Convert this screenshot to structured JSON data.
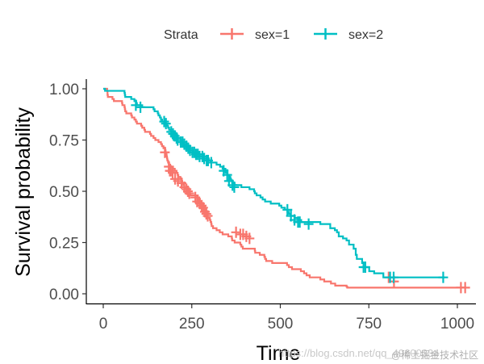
{
  "chart_data": {
    "type": "line",
    "subtype": "kaplan-meier step",
    "title": "",
    "xlabel": "Time",
    "ylabel": "Survival probability",
    "xlim": [
      0,
      1022
    ],
    "ylim": [
      0,
      1
    ],
    "x_ticks": [
      0,
      250,
      500,
      750,
      1000
    ],
    "x_tick_labels": [
      "0",
      "250",
      "500",
      "750",
      "1000"
    ],
    "y_ticks": [
      0,
      0.25,
      0.5,
      0.75,
      1.0
    ],
    "y_tick_labels": [
      "0.00",
      "0.25",
      "0.50",
      "0.75",
      "1.00"
    ],
    "grid": false,
    "legend": {
      "position": "top",
      "title": "Strata",
      "entries": [
        "sex=1",
        "sex=2"
      ]
    },
    "series": [
      {
        "name": "sex=1",
        "color": "#F8766D",
        "steps": [
          [
            0,
            1.0
          ],
          [
            11,
            0.99
          ],
          [
            12,
            0.97
          ],
          [
            13,
            0.96
          ],
          [
            26,
            0.95
          ],
          [
            30,
            0.94
          ],
          [
            53,
            0.93
          ],
          [
            54,
            0.92
          ],
          [
            60,
            0.91
          ],
          [
            61,
            0.9
          ],
          [
            62,
            0.89
          ],
          [
            65,
            0.88
          ],
          [
            79,
            0.87
          ],
          [
            81,
            0.86
          ],
          [
            88,
            0.85
          ],
          [
            92,
            0.84
          ],
          [
            95,
            0.83
          ],
          [
            107,
            0.82
          ],
          [
            110,
            0.81
          ],
          [
            116,
            0.8
          ],
          [
            118,
            0.79
          ],
          [
            132,
            0.78
          ],
          [
            135,
            0.77
          ],
          [
            142,
            0.76
          ],
          [
            147,
            0.75
          ],
          [
            156,
            0.74
          ],
          [
            163,
            0.73
          ],
          [
            166,
            0.72
          ],
          [
            170,
            0.71
          ],
          [
            175,
            0.7
          ],
          [
            176,
            0.69
          ],
          [
            177,
            0.68
          ],
          [
            179,
            0.67
          ],
          [
            180,
            0.66
          ],
          [
            181,
            0.65
          ],
          [
            183,
            0.64
          ],
          [
            186,
            0.63
          ],
          [
            189,
            0.62
          ],
          [
            197,
            0.61
          ],
          [
            202,
            0.6
          ],
          [
            207,
            0.59
          ],
          [
            210,
            0.58
          ],
          [
            212,
            0.57
          ],
          [
            218,
            0.56
          ],
          [
            222,
            0.55
          ],
          [
            223,
            0.54
          ],
          [
            226,
            0.53
          ],
          [
            229,
            0.52
          ],
          [
            230,
            0.51
          ],
          [
            239,
            0.5
          ],
          [
            245,
            0.49
          ],
          [
            246,
            0.48
          ],
          [
            267,
            0.47
          ],
          [
            268,
            0.46
          ],
          [
            269,
            0.45
          ],
          [
            270,
            0.44
          ],
          [
            283,
            0.43
          ],
          [
            284,
            0.42
          ],
          [
            285,
            0.41
          ],
          [
            286,
            0.4
          ],
          [
            288,
            0.39
          ],
          [
            291,
            0.38
          ],
          [
            293,
            0.37
          ],
          [
            301,
            0.36
          ],
          [
            303,
            0.35
          ],
          [
            305,
            0.34
          ],
          [
            306,
            0.33
          ],
          [
            310,
            0.32
          ],
          [
            320,
            0.31
          ],
          [
            329,
            0.3
          ],
          [
            337,
            0.29
          ],
          [
            353,
            0.28
          ],
          [
            363,
            0.27
          ],
          [
            364,
            0.26
          ],
          [
            371,
            0.25
          ],
          [
            387,
            0.24
          ],
          [
            390,
            0.23
          ],
          [
            394,
            0.22
          ],
          [
            428,
            0.21
          ],
          [
            429,
            0.2
          ],
          [
            442,
            0.19
          ],
          [
            455,
            0.18
          ],
          [
            457,
            0.17
          ],
          [
            460,
            0.16
          ],
          [
            477,
            0.15
          ],
          [
            519,
            0.14
          ],
          [
            524,
            0.13
          ],
          [
            533,
            0.12
          ],
          [
            558,
            0.11
          ],
          [
            567,
            0.1
          ],
          [
            574,
            0.09
          ],
          [
            583,
            0.08
          ],
          [
            613,
            0.07
          ],
          [
            624,
            0.06
          ],
          [
            643,
            0.05
          ],
          [
            655,
            0.04
          ],
          [
            687,
            0.035
          ],
          [
            689,
            0.03
          ],
          [
            705,
            0.03
          ],
          [
            707,
            0.03
          ],
          [
            731,
            0.03
          ],
          [
            735,
            0.03
          ],
          [
            765,
            0.03
          ],
          [
            791,
            0.03
          ],
          [
            806,
            0.03
          ],
          [
            814,
            0.03
          ],
          [
            840,
            0.03
          ],
          [
            883,
            0.03
          ],
          [
            1010,
            0.03
          ],
          [
            1022,
            0.03
          ]
        ],
        "censor": [
          [
            174,
            0.69
          ],
          [
            185,
            0.62
          ],
          [
            188,
            0.6
          ],
          [
            191,
            0.6
          ],
          [
            196,
            0.59
          ],
          [
            203,
            0.56
          ],
          [
            211,
            0.55
          ],
          [
            221,
            0.54
          ],
          [
            229,
            0.52
          ],
          [
            235,
            0.51
          ],
          [
            239,
            0.5
          ],
          [
            243,
            0.49
          ],
          [
            260,
            0.47
          ],
          [
            265,
            0.45
          ],
          [
            273,
            0.44
          ],
          [
            278,
            0.43
          ],
          [
            282,
            0.42
          ],
          [
            287,
            0.4
          ],
          [
            291,
            0.39
          ],
          [
            295,
            0.38
          ],
          [
            375,
            0.3
          ],
          [
            387,
            0.29
          ],
          [
            395,
            0.29
          ],
          [
            404,
            0.28
          ],
          [
            413,
            0.27
          ],
          [
            806,
            0.08
          ],
          [
            821,
            0.06
          ],
          [
            1010,
            0.03
          ],
          [
            1022,
            0.03
          ]
        ]
      },
      {
        "name": "sex=2",
        "color": "#00BFC4",
        "steps": [
          [
            0,
            1.0
          ],
          [
            5,
            0.99
          ],
          [
            60,
            0.98
          ],
          [
            61,
            0.97
          ],
          [
            62,
            0.96
          ],
          [
            79,
            0.95
          ],
          [
            88,
            0.94
          ],
          [
            93,
            0.93
          ],
          [
            95,
            0.92
          ],
          [
            110,
            0.91
          ],
          [
            142,
            0.9
          ],
          [
            145,
            0.89
          ],
          [
            154,
            0.88
          ],
          [
            156,
            0.87
          ],
          [
            160,
            0.86
          ],
          [
            163,
            0.85
          ],
          [
            166,
            0.84
          ],
          [
            176,
            0.83
          ],
          [
            180,
            0.82
          ],
          [
            183,
            0.81
          ],
          [
            186,
            0.8
          ],
          [
            191,
            0.79
          ],
          [
            199,
            0.78
          ],
          [
            203,
            0.77
          ],
          [
            207,
            0.76
          ],
          [
            210,
            0.75
          ],
          [
            221,
            0.74
          ],
          [
            226,
            0.73
          ],
          [
            230,
            0.72
          ],
          [
            239,
            0.71
          ],
          [
            245,
            0.7
          ],
          [
            256,
            0.69
          ],
          [
            267,
            0.68
          ],
          [
            283,
            0.67
          ],
          [
            285,
            0.66
          ],
          [
            298,
            0.65
          ],
          [
            303,
            0.64
          ],
          [
            320,
            0.63
          ],
          [
            330,
            0.62
          ],
          [
            337,
            0.61
          ],
          [
            345,
            0.59
          ],
          [
            351,
            0.58
          ],
          [
            356,
            0.57
          ],
          [
            359,
            0.56
          ],
          [
            361,
            0.55
          ],
          [
            364,
            0.54
          ],
          [
            371,
            0.53
          ],
          [
            390,
            0.52
          ],
          [
            413,
            0.51
          ],
          [
            426,
            0.5
          ],
          [
            428,
            0.49
          ],
          [
            433,
            0.48
          ],
          [
            444,
            0.47
          ],
          [
            450,
            0.46
          ],
          [
            457,
            0.45
          ],
          [
            473,
            0.44
          ],
          [
            497,
            0.43
          ],
          [
            503,
            0.42
          ],
          [
            513,
            0.41
          ],
          [
            520,
            0.4
          ],
          [
            524,
            0.39
          ],
          [
            529,
            0.38
          ],
          [
            540,
            0.37
          ],
          [
            550,
            0.36
          ],
          [
            559,
            0.35
          ],
          [
            613,
            0.34
          ],
          [
            641,
            0.32
          ],
          [
            654,
            0.31
          ],
          [
            660,
            0.3
          ],
          [
            665,
            0.28
          ],
          [
            677,
            0.27
          ],
          [
            687,
            0.26
          ],
          [
            694,
            0.24
          ],
          [
            707,
            0.22
          ],
          [
            713,
            0.19
          ],
          [
            716,
            0.17
          ],
          [
            731,
            0.15
          ],
          [
            735,
            0.13
          ],
          [
            751,
            0.11
          ],
          [
            765,
            0.1
          ],
          [
            791,
            0.08
          ],
          [
            821,
            0.08
          ],
          [
            965,
            0.08
          ]
        ],
        "censor": [
          [
            92,
            0.92
          ],
          [
            105,
            0.91
          ],
          [
            172,
            0.84
          ],
          [
            177,
            0.83
          ],
          [
            192,
            0.79
          ],
          [
            197,
            0.78
          ],
          [
            202,
            0.77
          ],
          [
            207,
            0.76
          ],
          [
            210,
            0.75
          ],
          [
            219,
            0.74
          ],
          [
            224,
            0.74
          ],
          [
            229,
            0.73
          ],
          [
            235,
            0.72
          ],
          [
            240,
            0.71
          ],
          [
            245,
            0.7
          ],
          [
            252,
            0.69
          ],
          [
            257,
            0.69
          ],
          [
            262,
            0.68
          ],
          [
            267,
            0.68
          ],
          [
            272,
            0.67
          ],
          [
            280,
            0.67
          ],
          [
            285,
            0.66
          ],
          [
            292,
            0.65
          ],
          [
            296,
            0.65
          ],
          [
            305,
            0.64
          ],
          [
            340,
            0.6
          ],
          [
            350,
            0.58
          ],
          [
            355,
            0.55
          ],
          [
            365,
            0.53
          ],
          [
            370,
            0.52
          ],
          [
            520,
            0.41
          ],
          [
            530,
            0.38
          ],
          [
            540,
            0.36
          ],
          [
            550,
            0.35
          ],
          [
            555,
            0.35
          ],
          [
            580,
            0.34
          ],
          [
            735,
            0.13
          ],
          [
            740,
            0.13
          ],
          [
            810,
            0.08
          ],
          [
            820,
            0.08
          ],
          [
            960,
            0.08
          ]
        ]
      }
    ]
  },
  "watermark": {
    "url_text": "https://blog.csdn.net/qq_49600334",
    "site_text": "@稀土掘金技术社区"
  }
}
